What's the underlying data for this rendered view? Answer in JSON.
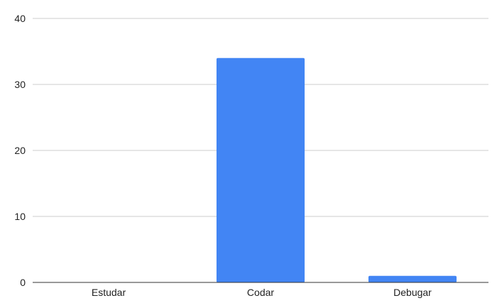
{
  "chart_data": {
    "type": "bar",
    "title": "",
    "xlabel": "",
    "ylabel": "",
    "categories": [
      "Estudar",
      "Codar",
      "Debugar"
    ],
    "values": [
      0,
      34,
      1
    ],
    "ylim": [
      0,
      40
    ],
    "yticks": [
      0,
      10,
      20,
      30,
      40
    ],
    "grid": true,
    "legend": "none",
    "colors": {
      "bar": "#4285f4",
      "grid": "#cccccc",
      "axis": "#333333",
      "text": "#222222"
    }
  }
}
